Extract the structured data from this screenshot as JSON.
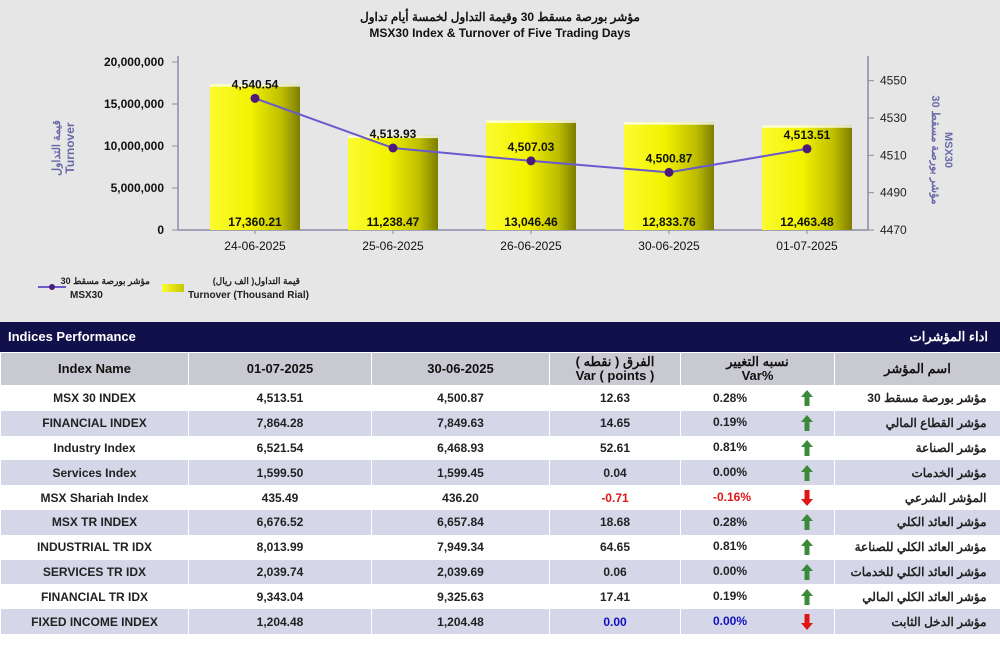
{
  "chart_data": {
    "type": "bar+line",
    "title_ar": "مؤشر بورصة مسقط 30 وقيمة التداول لخمسة أيام تداول",
    "title": "MSX30 Index & Turnover of Five Trading Days",
    "categories": [
      "24-06-2025",
      "25-06-2025",
      "26-06-2025",
      "30-06-2025",
      "01-07-2025"
    ],
    "series": [
      {
        "name": "Turnover (Thousand Rial)",
        "name_ar": "قيمة التداول( الف ريال)",
        "type": "bar",
        "axis": "left",
        "values": [
          17360.21,
          11238.47,
          13046.46,
          12833.76,
          12463.48
        ],
        "labels": [
          "17,360.21",
          "11,238.47",
          "13,046.46",
          "12,833.76",
          "12,463.48"
        ],
        "color": "#f0f000"
      },
      {
        "name": "MSX30",
        "name_ar": "مؤشر بورصة مسقط 30",
        "type": "line",
        "axis": "right",
        "values": [
          4540.54,
          4513.93,
          4507.03,
          4500.87,
          4513.51
        ],
        "labels": [
          "4,540.54",
          "4,513.93",
          "4,507.03",
          "4,500.87",
          "4,513.51"
        ],
        "color": "#6a5acd"
      }
    ],
    "y_left": {
      "label": "Turnover",
      "label_ar": "قيمة التداول",
      "range": [
        0,
        20000000
      ],
      "ticks": [
        0,
        5000000,
        10000000,
        15000000,
        20000000
      ],
      "tick_labels": [
        "0",
        "5,000,000",
        "10,000,000",
        "15,000,000",
        "20,000,000"
      ],
      "bar_scale": 1000
    },
    "y_right": {
      "label": "MSX30",
      "label_ar": "مؤشر بورصة مسقط 30",
      "range": [
        4470,
        4560
      ],
      "ticks": [
        4470,
        4490,
        4510,
        4530,
        4550
      ],
      "tick_labels": [
        "4470",
        "4490",
        "4510",
        "4530",
        "4550"
      ]
    },
    "legend": {
      "position": "bottom-left"
    },
    "grid": false
  },
  "colors": {
    "header_bg": "#10104a",
    "row_alt": "#d5d7e9",
    "positive": "#3a8a3a",
    "negative": "#e01515",
    "unchanged": "#1010c0",
    "line": "#6a5acd"
  },
  "table": {
    "title": "Indices Performance",
    "title_ar": "اداء المؤشرات",
    "columns": {
      "name": "Index Name",
      "date1": "01-07-2025",
      "date2": "30-06-2025",
      "var_ar": "الفرق ( نقطه )",
      "var": "Var ( points )",
      "pct_ar": "نسبه التغيير",
      "pct": "Var%",
      "name_ar": "اسم المؤشر"
    },
    "rows": [
      {
        "name": "MSX 30 INDEX",
        "d1": "4,513.51",
        "d2": "4,500.87",
        "var": "12.63",
        "pct": "0.28%",
        "dir": "up",
        "name_ar": "مؤشر بورصة مسقط 30"
      },
      {
        "name": "FINANCIAL INDEX",
        "d1": "7,864.28",
        "d2": "7,849.63",
        "var": "14.65",
        "pct": "0.19%",
        "dir": "up",
        "name_ar": "مؤشر القطاع المالي"
      },
      {
        "name": "Industry Index",
        "d1": "6,521.54",
        "d2": "6,468.93",
        "var": "52.61",
        "pct": "0.81%",
        "dir": "up",
        "name_ar": "مؤشر الصناعة"
      },
      {
        "name": "Services Index",
        "d1": "1,599.50",
        "d2": "1,599.45",
        "var": "0.04",
        "pct": "0.00%",
        "dir": "up",
        "name_ar": "مؤشر الخدمات"
      },
      {
        "name": "MSX Shariah Index",
        "d1": "435.49",
        "d2": "436.20",
        "var": "-0.71",
        "pct": "-0.16%",
        "dir": "down",
        "name_ar": "المؤشر الشرعي"
      },
      {
        "name": "MSX TR INDEX",
        "d1": "6,676.52",
        "d2": "6,657.84",
        "var": "18.68",
        "pct": "0.28%",
        "dir": "up",
        "name_ar": "مؤشر العائد الكلي"
      },
      {
        "name": "INDUSTRIAL TR IDX",
        "d1": "8,013.99",
        "d2": "7,949.34",
        "var": "64.65",
        "pct": "0.81%",
        "dir": "up",
        "name_ar": "مؤشر العائد الكلي للصناعة"
      },
      {
        "name": "SERVICES TR IDX",
        "d1": "2,039.74",
        "d2": "2,039.69",
        "var": "0.06",
        "pct": "0.00%",
        "dir": "up",
        "name_ar": "مؤشر العائد الكلي للخدمات"
      },
      {
        "name": "FINANCIAL TR IDX",
        "d1": "9,343.04",
        "d2": "9,325.63",
        "var": "17.41",
        "pct": "0.19%",
        "dir": "up",
        "name_ar": "مؤشر العائد الكلي المالي"
      },
      {
        "name": "FIXED INCOME INDEX",
        "d1": "1,204.48",
        "d2": "1,204.48",
        "var": "0.00",
        "pct": "0.00%",
        "dir": "down",
        "name_ar": "مؤشر الدخل الثابت",
        "zero": true
      }
    ]
  }
}
